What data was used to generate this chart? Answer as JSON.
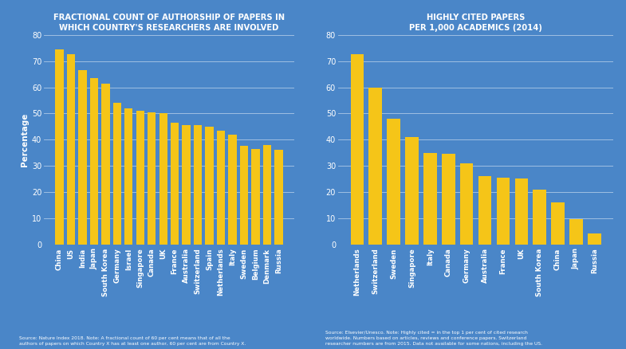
{
  "left_title": "FRACTIONAL COUNT OF AUTHORSHIP OF PAPERS IN\nWHICH COUNTRY'S RESEARCHERS ARE INVOLVED",
  "right_title": "HIGHLY CITED PAPERS\nPER 1,000 ACADEMICS (2014)",
  "left_source": "Source: Nature Index 2018. Note: A fractional count of 60 per cent means that of all the\nauthors of papers on which Country X has at least one author, 60 per cent are from Country X.",
  "right_source": "Source: Elsevier/Unesco. Note: Highly cited = in the top 1 per cent of cited research\nworldwide. Numbers based on articles, reviews and conference papers. Switzerland\nresearcher numbers are from 2015. Data not available for some nations, including the US.",
  "left_categories": [
    "China",
    "US",
    "India",
    "Japan",
    "South Korea",
    "Germany",
    "Israel",
    "Singapore",
    "Canada",
    "UK",
    "France",
    "Australia",
    "Switzerland",
    "Spain",
    "Netherlands",
    "Italy",
    "Sweden",
    "Belgium",
    "Denmark",
    "Russia"
  ],
  "left_values": [
    74.5,
    72.5,
    66.5,
    63.5,
    61.5,
    54,
    52,
    51,
    50.5,
    50,
    46.5,
    45.5,
    45.5,
    45,
    43.5,
    42,
    37.5,
    36.5,
    38,
    36
  ],
  "right_categories": [
    "Netherlands",
    "Switzerland",
    "Sweden",
    "Singapore",
    "Italy",
    "Canada",
    "Germany",
    "Australia",
    "France",
    "UK",
    "South Korea",
    "China",
    "Japan",
    "Russia"
  ],
  "right_values": [
    72.5,
    60,
    48,
    41,
    35,
    34.5,
    31,
    26,
    25.5,
    25,
    21,
    16,
    9.5,
    4
  ],
  "bar_color": "#F5C518",
  "bg_color": "#4A86C8",
  "text_color": "white",
  "ylabel": "Percentage",
  "ylim": [
    0,
    80
  ],
  "yticks": [
    0,
    10,
    20,
    30,
    40,
    50,
    60,
    70,
    80
  ],
  "title_fontsize": 7.2,
  "tick_fontsize": 6.2,
  "ylabel_fontsize": 7.5,
  "source_fontsize": 4.3
}
